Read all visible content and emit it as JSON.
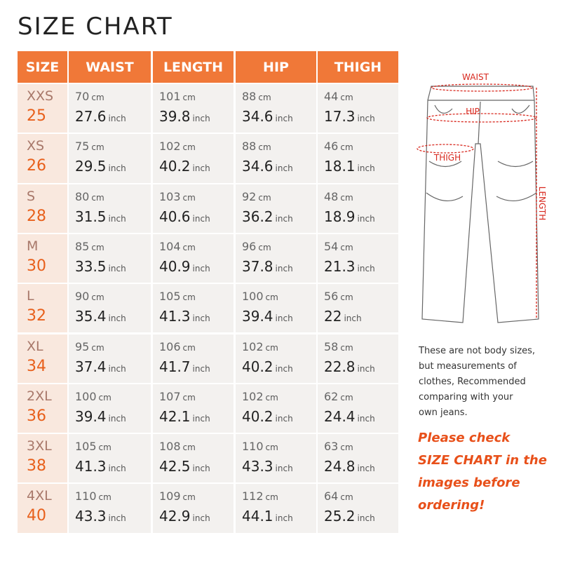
{
  "title": "SIZE CHART",
  "table": {
    "header": [
      "SIZE",
      "WAIST",
      "LENGTH",
      "HIP",
      "THIGH"
    ],
    "unit_cm": "cm",
    "unit_inch": "inch",
    "rows": [
      {
        "size": "XXS",
        "number": "25",
        "cells": [
          [
            "70",
            "27.6"
          ],
          [
            "101",
            "39.8"
          ],
          [
            "88",
            "34.6"
          ],
          [
            "44",
            "17.3"
          ]
        ]
      },
      {
        "size": "XS",
        "number": "26",
        "cells": [
          [
            "75",
            "29.5"
          ],
          [
            "102",
            "40.2"
          ],
          [
            "88",
            "34.6"
          ],
          [
            "46",
            "18.1"
          ]
        ]
      },
      {
        "size": "S",
        "number": "28",
        "cells": [
          [
            "80",
            "31.5"
          ],
          [
            "103",
            "40.6"
          ],
          [
            "92",
            "36.2"
          ],
          [
            "48",
            "18.9"
          ]
        ]
      },
      {
        "size": "M",
        "number": "30",
        "cells": [
          [
            "85",
            "33.5"
          ],
          [
            "104",
            "40.9"
          ],
          [
            "96",
            "37.8"
          ],
          [
            "54",
            "21.3"
          ]
        ]
      },
      {
        "size": "L",
        "number": "32",
        "cells": [
          [
            "90",
            "35.4"
          ],
          [
            "105",
            "41.3"
          ],
          [
            "100",
            "39.4"
          ],
          [
            "56",
            "22"
          ]
        ]
      },
      {
        "size": "XL",
        "number": "34",
        "cells": [
          [
            "95",
            "37.4"
          ],
          [
            "106",
            "41.7"
          ],
          [
            "102",
            "40.2"
          ],
          [
            "58",
            "22.8"
          ]
        ]
      },
      {
        "size": "2XL",
        "number": "36",
        "cells": [
          [
            "100",
            "39.4"
          ],
          [
            "107",
            "42.1"
          ],
          [
            "102",
            "40.2"
          ],
          [
            "62",
            "24.4"
          ]
        ]
      },
      {
        "size": "3XL",
        "number": "38",
        "cells": [
          [
            "105",
            "41.3"
          ],
          [
            "108",
            "42.5"
          ],
          [
            "110",
            "43.3"
          ],
          [
            "63",
            "24.8"
          ]
        ]
      },
      {
        "size": "4XL",
        "number": "40",
        "cells": [
          [
            "110",
            "43.3"
          ],
          [
            "109",
            "42.9"
          ],
          [
            "112",
            "44.1"
          ],
          [
            "64",
            "25.2"
          ]
        ]
      }
    ]
  },
  "diagram": {
    "waist": "WAIST",
    "hip": "HIP",
    "thigh": "THIGH",
    "length": "LENGTH"
  },
  "note": [
    "These are not body sizes,",
    "but measurements of",
    "clothes, Recommended",
    "comparing with your",
    "own jeans."
  ],
  "callout": [
    "Please check",
    "SIZE CHART in the",
    "images before",
    "ordering!"
  ]
}
